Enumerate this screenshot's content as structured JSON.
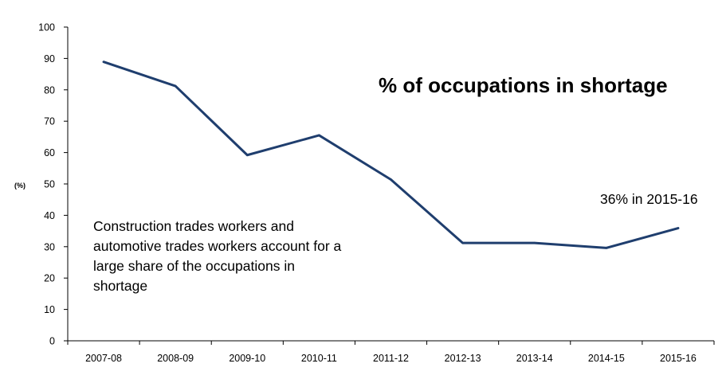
{
  "chart_data": {
    "type": "line",
    "title": "% of occupations in shortage",
    "xlabel": "",
    "ylabel": "(%)",
    "categories": [
      "2007-08",
      "2008-09",
      "2009-10",
      "2010-11",
      "2011-12",
      "2012-13",
      "2013-14",
      "2014-15",
      "2015-16"
    ],
    "series": [
      {
        "values": [
          88.9,
          81.2,
          59.2,
          65.5,
          51.4,
          31.2,
          31.2,
          29.6,
          35.9
        ]
      }
    ],
    "ylim": [
      0,
      100
    ],
    "yticks": [
      0,
      10,
      20,
      30,
      40,
      50,
      60,
      70,
      80,
      90,
      100
    ],
    "grid": false,
    "legend": "none",
    "annotations": [
      {
        "lines": [
          "Construction trades workers and",
          "automotive trades workers account for a",
          "large share of the occupations in",
          "shortage"
        ]
      },
      {
        "lines": [
          "36% in 2015-16"
        ]
      }
    ]
  },
  "colors": {
    "line": "#1f3e6e",
    "axis": "#000000",
    "text": "#000000"
  }
}
